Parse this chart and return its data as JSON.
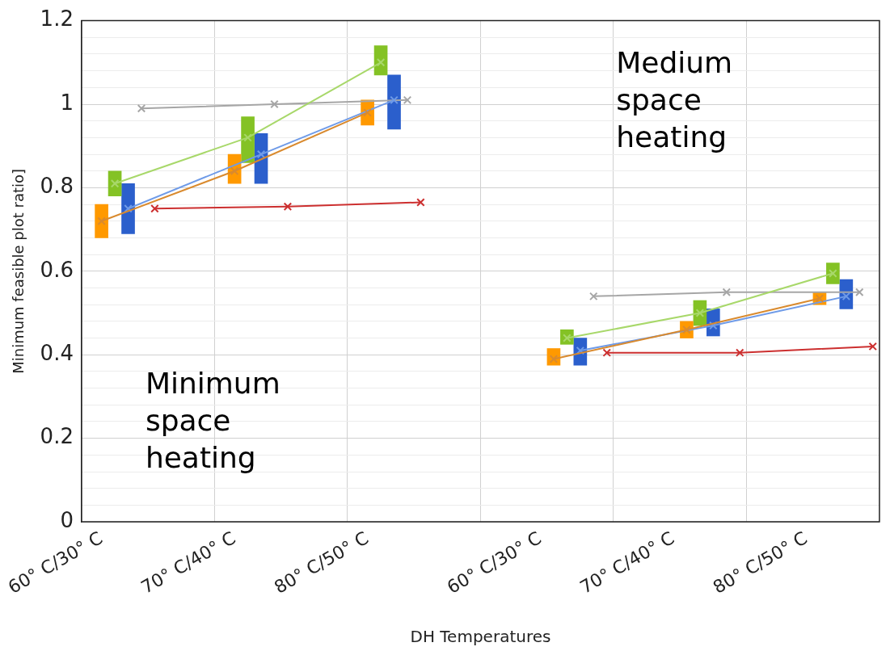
{
  "chart_data": {
    "type": "line",
    "xlabel": "DH Temperatures",
    "ylabel": "Minimum feasible plot ratio]",
    "categories": [
      null,
      "60° C/30° C",
      null,
      null,
      null,
      null,
      null,
      null,
      null,
      null,
      null,
      "70° C/40° C",
      null,
      null,
      null,
      null,
      null,
      null,
      null,
      null,
      null,
      "80° C/50° C",
      null,
      null,
      null,
      null,
      null,
      null,
      null,
      null,
      null,
      null,
      null,
      null,
      "60° C/30° C",
      null,
      null,
      null,
      null,
      null,
      null,
      null,
      null,
      null,
      "70° C/40° C",
      null,
      null,
      null,
      null,
      null,
      null,
      null,
      null,
      null,
      "80° C/50° C",
      null,
      null,
      null,
      null,
      null
    ],
    "series": [
      {
        "type": "bar",
        "color": "#ff9900",
        "values": [
          null,
          0.08,
          null,
          null,
          null,
          null,
          null,
          null,
          null,
          null,
          null,
          0.07,
          null,
          null,
          null,
          null,
          null,
          null,
          null,
          null,
          null,
          0.06,
          null,
          null,
          null,
          null,
          null,
          null,
          null,
          null,
          null,
          null,
          null,
          null,
          null,
          0.04,
          null,
          null,
          null,
          null,
          null,
          null,
          null,
          null,
          null,
          0.04,
          null,
          null,
          null,
          null,
          null,
          null,
          null,
          null,
          null,
          0.03,
          null,
          null,
          null,
          null
        ],
        "base": [
          null,
          0.68,
          null,
          null,
          null,
          null,
          null,
          null,
          null,
          null,
          null,
          0.81,
          null,
          null,
          null,
          null,
          null,
          null,
          null,
          null,
          null,
          0.95,
          null,
          null,
          null,
          null,
          null,
          null,
          null,
          null,
          null,
          null,
          null,
          null,
          null,
          0.375,
          null,
          null,
          null,
          null,
          null,
          null,
          null,
          null,
          null,
          0.44,
          null,
          null,
          null,
          null,
          null,
          null,
          null,
          null,
          null,
          0.52,
          null,
          null,
          null,
          null
        ]
      },
      {
        "type": "bar",
        "color": "#84c225",
        "values": [
          null,
          null,
          0.06,
          null,
          null,
          null,
          null,
          null,
          null,
          null,
          null,
          null,
          0.11,
          null,
          null,
          null,
          null,
          null,
          null,
          null,
          null,
          null,
          0.07,
          null,
          null,
          null,
          null,
          null,
          null,
          null,
          null,
          null,
          null,
          null,
          null,
          null,
          0.035,
          null,
          null,
          null,
          null,
          null,
          null,
          null,
          null,
          null,
          0.06,
          null,
          null,
          null,
          null,
          null,
          null,
          null,
          null,
          null,
          0.05,
          null,
          null,
          null
        ],
        "base": [
          null,
          null,
          0.78,
          null,
          null,
          null,
          null,
          null,
          null,
          null,
          null,
          null,
          0.86,
          null,
          null,
          null,
          null,
          null,
          null,
          null,
          null,
          null,
          1.07,
          null,
          null,
          null,
          null,
          null,
          null,
          null,
          null,
          null,
          null,
          null,
          null,
          null,
          0.425,
          null,
          null,
          null,
          null,
          null,
          null,
          null,
          null,
          null,
          0.47,
          null,
          null,
          null,
          null,
          null,
          null,
          null,
          null,
          null,
          0.57,
          null,
          null,
          null
        ]
      },
      {
        "type": "bar",
        "color": "#2b5fcc",
        "values": [
          null,
          null,
          null,
          0.12,
          null,
          null,
          null,
          null,
          null,
          null,
          null,
          null,
          null,
          0.12,
          null,
          null,
          null,
          null,
          null,
          null,
          null,
          null,
          null,
          0.13,
          null,
          null,
          null,
          null,
          null,
          null,
          null,
          null,
          null,
          null,
          null,
          null,
          null,
          0.065,
          null,
          null,
          null,
          null,
          null,
          null,
          null,
          null,
          null,
          0.065,
          null,
          null,
          null,
          null,
          null,
          null,
          null,
          null,
          null,
          0.07,
          null,
          null
        ],
        "base": [
          null,
          null,
          null,
          0.69,
          null,
          null,
          null,
          null,
          null,
          null,
          null,
          null,
          null,
          0.81,
          null,
          null,
          null,
          null,
          null,
          null,
          null,
          null,
          null,
          0.94,
          null,
          null,
          null,
          null,
          null,
          null,
          null,
          null,
          null,
          null,
          null,
          null,
          null,
          0.375,
          null,
          null,
          null,
          null,
          null,
          null,
          null,
          null,
          null,
          0.445,
          null,
          null,
          null,
          null,
          null,
          null,
          null,
          null,
          null,
          0.51,
          null,
          null
        ]
      },
      {
        "color": "#d98a2e",
        "values": [
          null,
          0.72,
          null,
          null,
          null,
          null,
          null,
          null,
          null,
          null,
          null,
          0.84,
          null,
          null,
          null,
          null,
          null,
          null,
          null,
          null,
          null,
          0.98,
          null,
          null,
          null,
          null,
          null,
          null,
          null,
          null,
          null,
          null,
          null,
          null,
          null,
          null,
          null,
          null,
          null,
          null,
          null,
          null,
          null,
          null,
          null,
          null,
          null,
          null,
          null,
          null,
          null,
          null,
          null,
          null,
          null,
          null,
          null,
          null,
          null,
          null
        ]
      },
      {
        "color": "#a8d86a",
        "values": [
          null,
          null,
          0.81,
          null,
          null,
          null,
          null,
          null,
          null,
          null,
          null,
          null,
          0.92,
          null,
          null,
          null,
          null,
          null,
          null,
          null,
          null,
          null,
          1.1,
          null,
          null,
          null,
          null,
          null,
          null,
          null,
          null,
          null,
          null,
          null,
          null,
          null,
          null,
          null,
          null,
          null,
          null,
          null,
          null,
          null,
          null,
          null,
          null,
          null,
          null,
          null,
          null,
          null,
          null,
          null,
          null,
          null,
          null,
          null,
          null,
          null
        ]
      },
      {
        "color": "#6f9be8",
        "values": [
          null,
          null,
          null,
          0.75,
          null,
          null,
          null,
          null,
          null,
          null,
          null,
          null,
          null,
          0.88,
          null,
          null,
          null,
          null,
          null,
          null,
          null,
          null,
          null,
          1.01,
          null,
          null,
          null,
          null,
          null,
          null,
          null,
          null,
          null,
          null,
          null,
          null,
          null,
          null,
          null,
          null,
          null,
          null,
          null,
          null,
          null,
          null,
          null,
          null,
          null,
          null,
          null,
          null,
          null,
          null,
          null,
          null,
          null,
          null,
          null,
          null
        ]
      },
      {
        "color": "#a6a6a6",
        "values": [
          null,
          null,
          null,
          null,
          0.99,
          null,
          null,
          null,
          null,
          null,
          null,
          null,
          null,
          null,
          1.0,
          null,
          null,
          null,
          null,
          null,
          null,
          null,
          null,
          null,
          1.01,
          null,
          null,
          null,
          null,
          null,
          null,
          null,
          null,
          null,
          null,
          null,
          null,
          null,
          null,
          null,
          null,
          null,
          null,
          null,
          null,
          null,
          null,
          null,
          null,
          null,
          null,
          null,
          null,
          null,
          null,
          null,
          null,
          null,
          null,
          null
        ]
      },
      {
        "color": "#cc2f2f",
        "values": [
          null,
          null,
          null,
          null,
          null,
          0.75,
          null,
          null,
          null,
          null,
          null,
          null,
          null,
          null,
          null,
          0.755,
          null,
          null,
          null,
          null,
          null,
          null,
          null,
          null,
          null,
          0.765,
          null,
          null,
          null,
          null,
          null,
          null,
          null,
          null,
          null,
          null,
          null,
          null,
          null,
          null,
          null,
          null,
          null,
          null,
          null,
          null,
          null,
          null,
          null,
          null,
          null,
          null,
          null,
          null,
          null,
          null,
          null,
          null,
          null,
          null
        ]
      },
      {
        "color": "#d98a2e",
        "values": [
          null,
          null,
          null,
          null,
          null,
          null,
          null,
          null,
          null,
          null,
          null,
          null,
          null,
          null,
          null,
          null,
          null,
          null,
          null,
          null,
          null,
          null,
          null,
          null,
          null,
          null,
          null,
          null,
          null,
          null,
          null,
          null,
          null,
          null,
          null,
          0.39,
          null,
          null,
          null,
          null,
          null,
          null,
          null,
          null,
          null,
          0.46,
          null,
          null,
          null,
          null,
          null,
          null,
          null,
          null,
          null,
          0.535,
          null,
          null,
          null,
          null
        ]
      },
      {
        "color": "#a8d86a",
        "values": [
          null,
          null,
          null,
          null,
          null,
          null,
          null,
          null,
          null,
          null,
          null,
          null,
          null,
          null,
          null,
          null,
          null,
          null,
          null,
          null,
          null,
          null,
          null,
          null,
          null,
          null,
          null,
          null,
          null,
          null,
          null,
          null,
          null,
          null,
          null,
          null,
          0.44,
          null,
          null,
          null,
          null,
          null,
          null,
          null,
          null,
          null,
          0.5,
          null,
          null,
          null,
          null,
          null,
          null,
          null,
          null,
          null,
          0.595,
          null,
          null,
          null
        ]
      },
      {
        "color": "#6f9be8",
        "values": [
          null,
          null,
          null,
          null,
          null,
          null,
          null,
          null,
          null,
          null,
          null,
          null,
          null,
          null,
          null,
          null,
          null,
          null,
          null,
          null,
          null,
          null,
          null,
          null,
          null,
          null,
          null,
          null,
          null,
          null,
          null,
          null,
          null,
          null,
          null,
          null,
          null,
          0.41,
          null,
          null,
          null,
          null,
          null,
          null,
          null,
          null,
          null,
          0.47,
          null,
          null,
          null,
          null,
          null,
          null,
          null,
          null,
          null,
          0.54,
          null,
          null
        ]
      },
      {
        "color": "#a6a6a6",
        "values": [
          null,
          null,
          null,
          null,
          null,
          null,
          null,
          null,
          null,
          null,
          null,
          null,
          null,
          null,
          null,
          null,
          null,
          null,
          null,
          null,
          null,
          null,
          null,
          null,
          null,
          null,
          null,
          null,
          null,
          null,
          null,
          null,
          null,
          null,
          null,
          null,
          null,
          null,
          0.54,
          null,
          null,
          null,
          null,
          null,
          null,
          null,
          null,
          null,
          0.55,
          null,
          null,
          null,
          null,
          null,
          null,
          null,
          null,
          null,
          0.55,
          null
        ]
      },
      {
        "color": "#cc2f2f",
        "values": [
          null,
          null,
          null,
          null,
          null,
          null,
          null,
          null,
          null,
          null,
          null,
          null,
          null,
          null,
          null,
          null,
          null,
          null,
          null,
          null,
          null,
          null,
          null,
          null,
          null,
          null,
          null,
          null,
          null,
          null,
          null,
          null,
          null,
          null,
          null,
          null,
          null,
          null,
          null,
          0.405,
          null,
          null,
          null,
          null,
          null,
          null,
          null,
          null,
          null,
          0.405,
          null,
          null,
          null,
          null,
          null,
          null,
          null,
          null,
          null,
          0.42
        ]
      }
    ],
    "ylim": [
      0,
      1.2
    ],
    "yticks": [
      0,
      {
        "value": 0.04,
        "label": null
      },
      {
        "value": 0.08,
        "label": null
      },
      {
        "value": 0.12,
        "label": null
      },
      {
        "value": 0.16,
        "label": null
      },
      0.2,
      {
        "value": 0.24,
        "label": null
      },
      {
        "value": 0.28,
        "label": null
      },
      {
        "value": 0.32,
        "label": null
      },
      {
        "value": 0.36,
        "label": null
      },
      0.4,
      {
        "value": 0.44,
        "label": null
      },
      {
        "value": 0.48,
        "label": null
      },
      {
        "value": 0.52,
        "label": null
      },
      {
        "value": 0.56,
        "label": null
      },
      0.6,
      {
        "value": 0.64,
        "label": null
      },
      {
        "value": 0.68,
        "label": null
      },
      {
        "value": 0.72,
        "label": null
      },
      {
        "value": 0.76,
        "label": null
      },
      0.8,
      {
        "value": 0.84,
        "label": null
      },
      {
        "value": 0.88,
        "label": null
      },
      {
        "value": 0.92,
        "label": null
      },
      {
        "value": 0.96,
        "label": null
      },
      1,
      {
        "value": 1.04,
        "label": null
      },
      {
        "value": 1.08,
        "label": null
      },
      {
        "value": 1.12,
        "label": null
      },
      {
        "value": 1.16,
        "label": null
      },
      1.2
    ],
    "grid": true,
    "marker": "cross",
    "line_style": "solid",
    "annotations": [
      "Minimum space heating",
      "Medium space heating"
    ]
  }
}
